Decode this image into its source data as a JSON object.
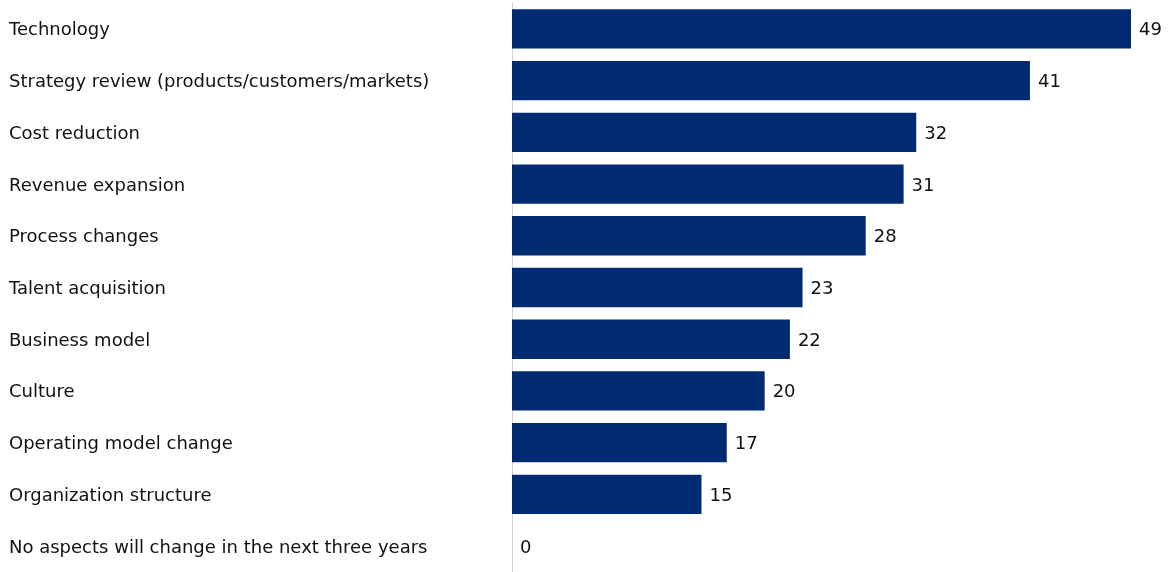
{
  "chart_data": {
    "type": "bar",
    "orientation": "horizontal",
    "categories": [
      "Technology",
      "Strategy review (products/customers/markets)",
      "Cost reduction",
      "Revenue expansion",
      "Process changes",
      "Talent acquisition",
      "Business model",
      "Culture",
      "Operating model change",
      "Organization structure",
      "No aspects will change in the next three years"
    ],
    "values": [
      49,
      41,
      32,
      31,
      28,
      23,
      22,
      20,
      17,
      15,
      0
    ],
    "color": "#002b72",
    "data_labels": true
  }
}
